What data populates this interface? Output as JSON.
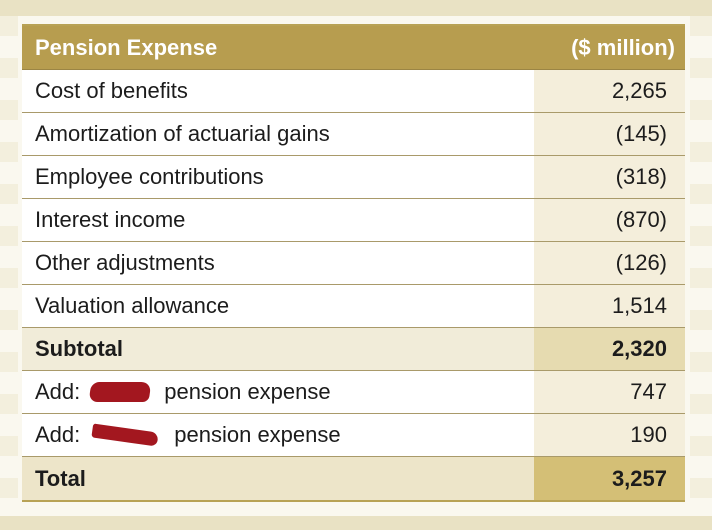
{
  "table": {
    "header": {
      "label": "Pension Expense",
      "value": "($ million)"
    },
    "rows": [
      {
        "label": "Cost of benefits",
        "value": "2,265"
      },
      {
        "label": "Amortization of actuarial gains",
        "value": "(145)"
      },
      {
        "label": "Employee contributions",
        "value": "(318)"
      },
      {
        "label": "Interest income",
        "value": "(870)"
      },
      {
        "label": "Other adjustments",
        "value": "(126)"
      },
      {
        "label": "Valuation allowance",
        "value": "1,514"
      }
    ],
    "subtotal": {
      "label": "Subtotal",
      "value": "2,320"
    },
    "adds": [
      {
        "prefix": "Add:",
        "suffix": "pension expense",
        "value": "747"
      },
      {
        "prefix": "Add:",
        "suffix": "pension expense",
        "value": "190"
      }
    ],
    "total": {
      "label": "Total",
      "value": "3,257"
    }
  },
  "colors": {
    "header_bg": "#b79d4f",
    "value_col_bg": "#f4eedb",
    "subtotal_value_bg": "#e6dbb0",
    "total_value_bg": "#d4bf76",
    "redaction": "#a3171f"
  }
}
